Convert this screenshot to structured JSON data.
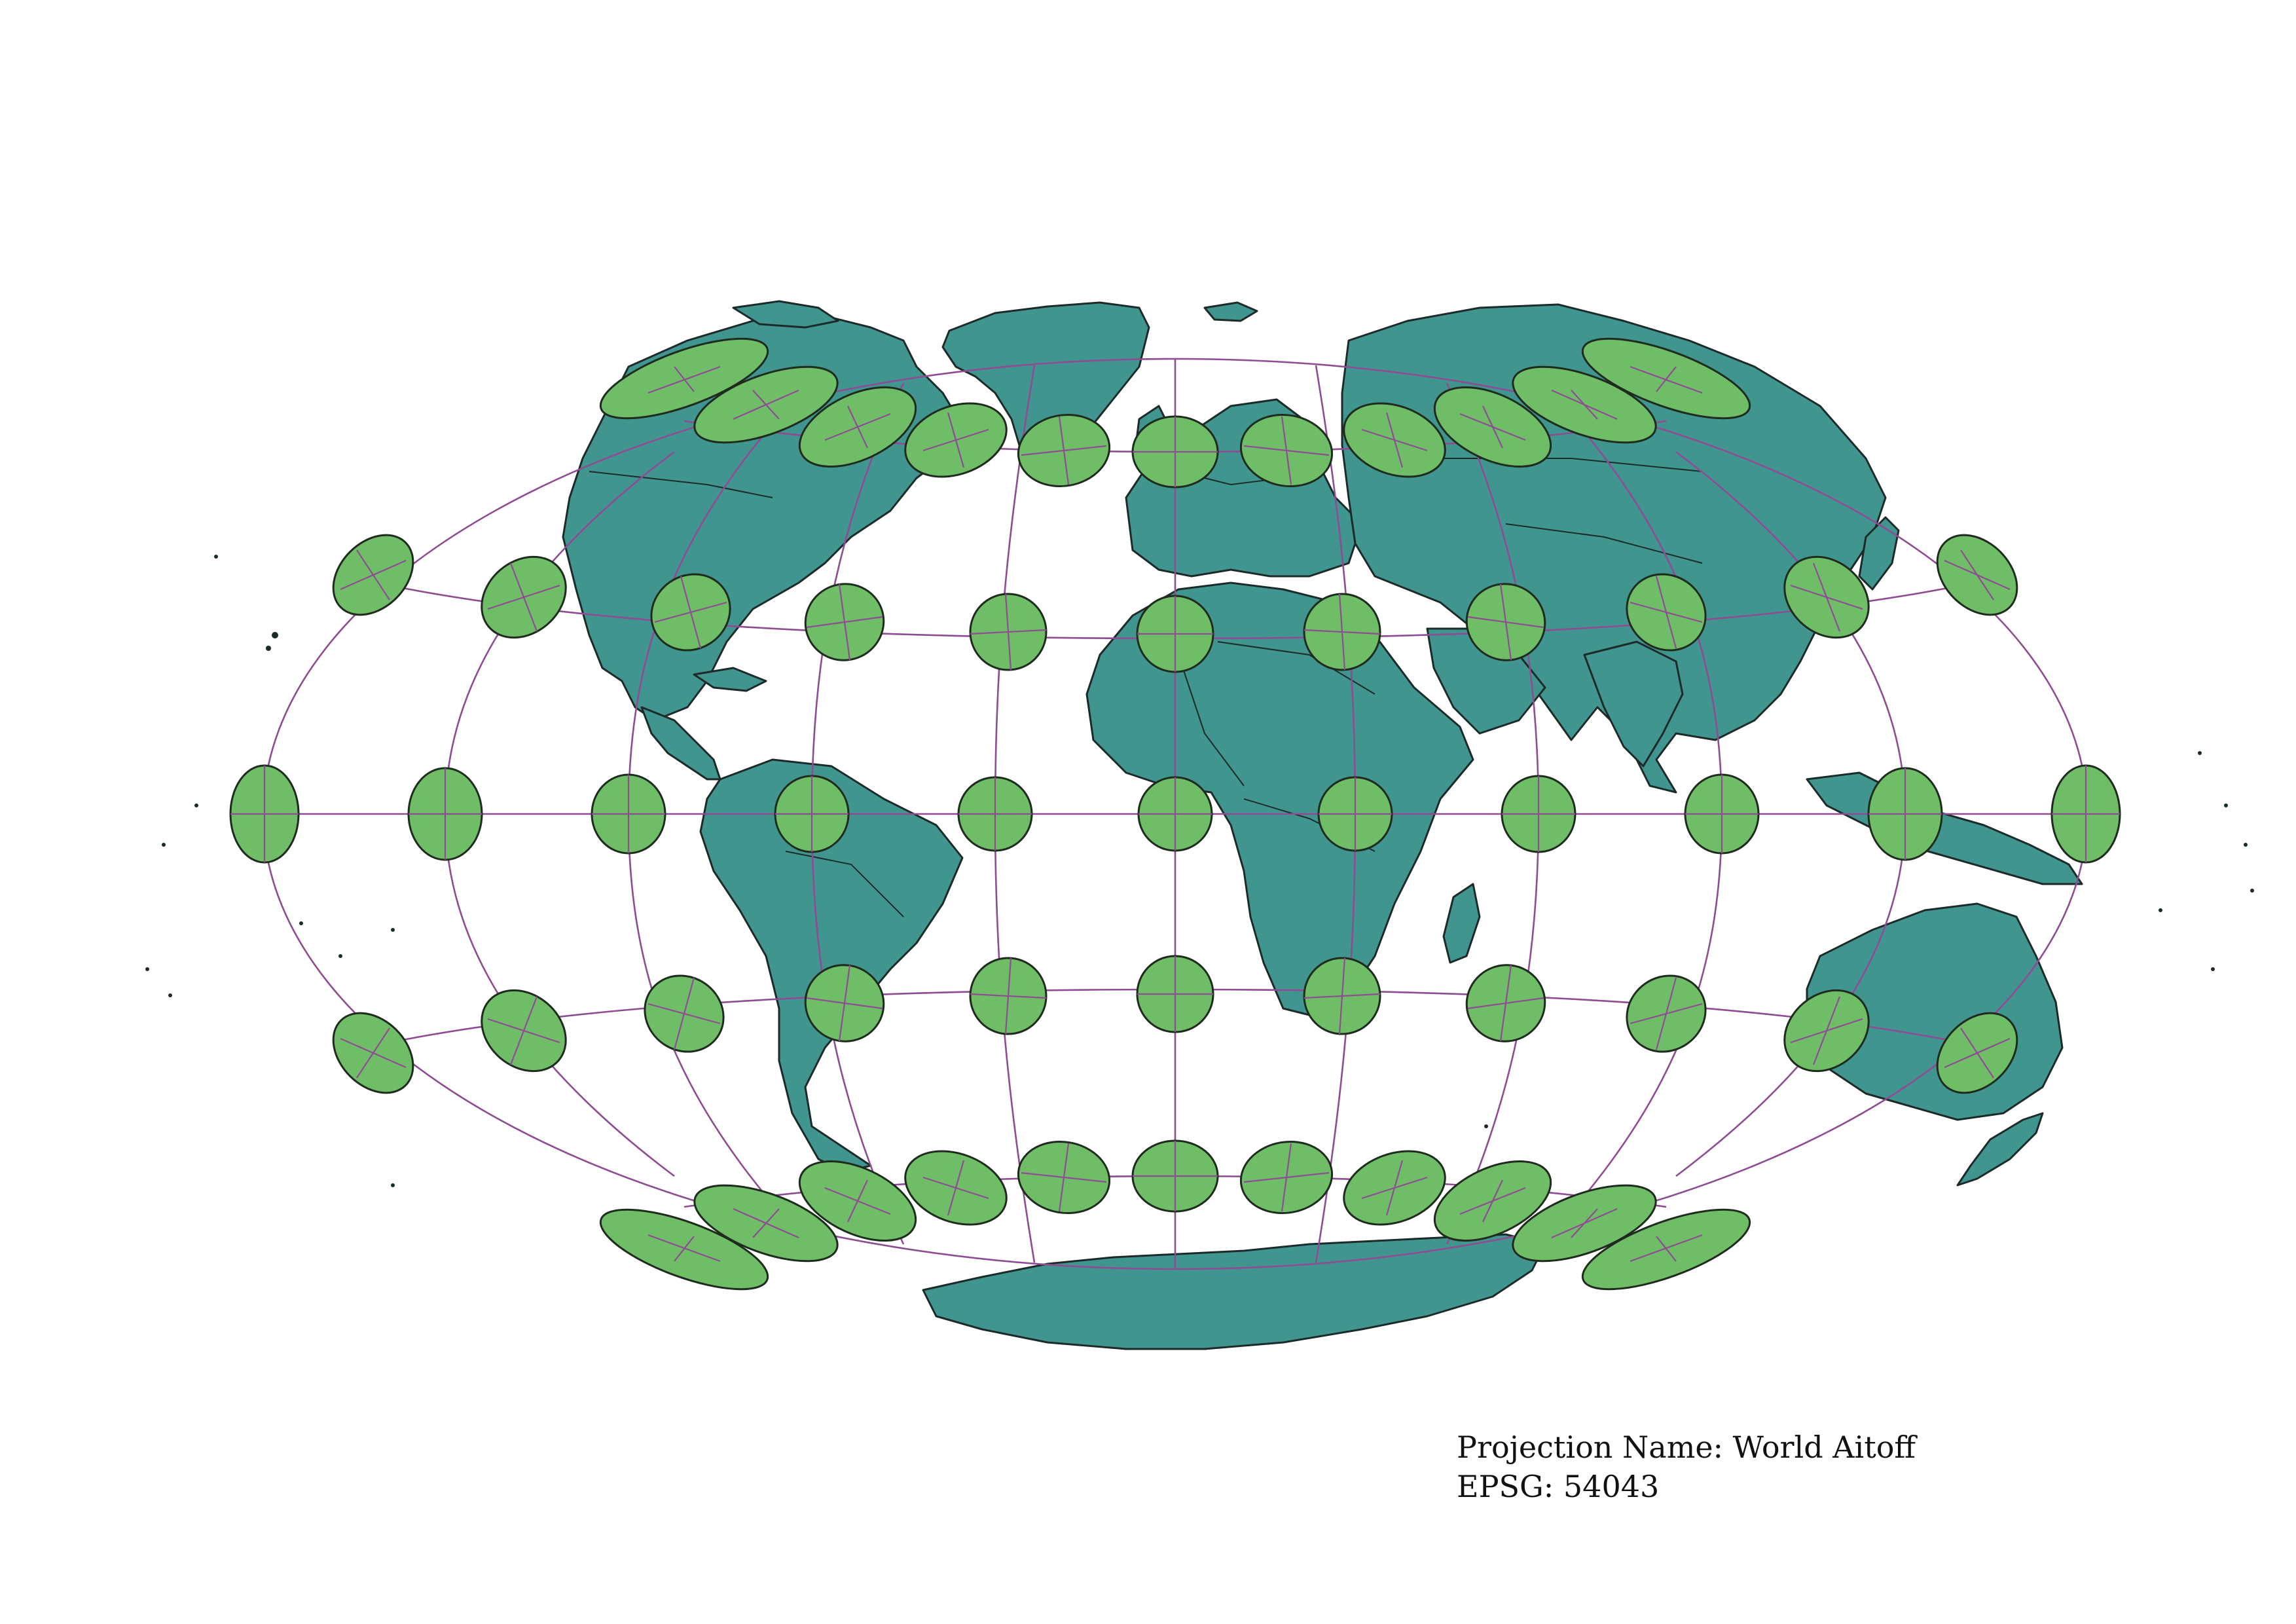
{
  "projection": {
    "name_label": "Projection Name: World Aitoff",
    "epsg_label": "EPSG: 54043"
  },
  "colors": {
    "land": "#41958f",
    "tissot_fill": "#6fbe67",
    "graticule": "#8e4c93",
    "outline": "#1c2b2a",
    "background": "#ffffff"
  },
  "graticule": {
    "latitudes": [
      -60,
      -30,
      0,
      30,
      60
    ],
    "longitudes": [
      -150,
      -120,
      -90,
      -60,
      -30,
      0,
      30,
      60,
      90,
      120,
      150
    ]
  }
}
